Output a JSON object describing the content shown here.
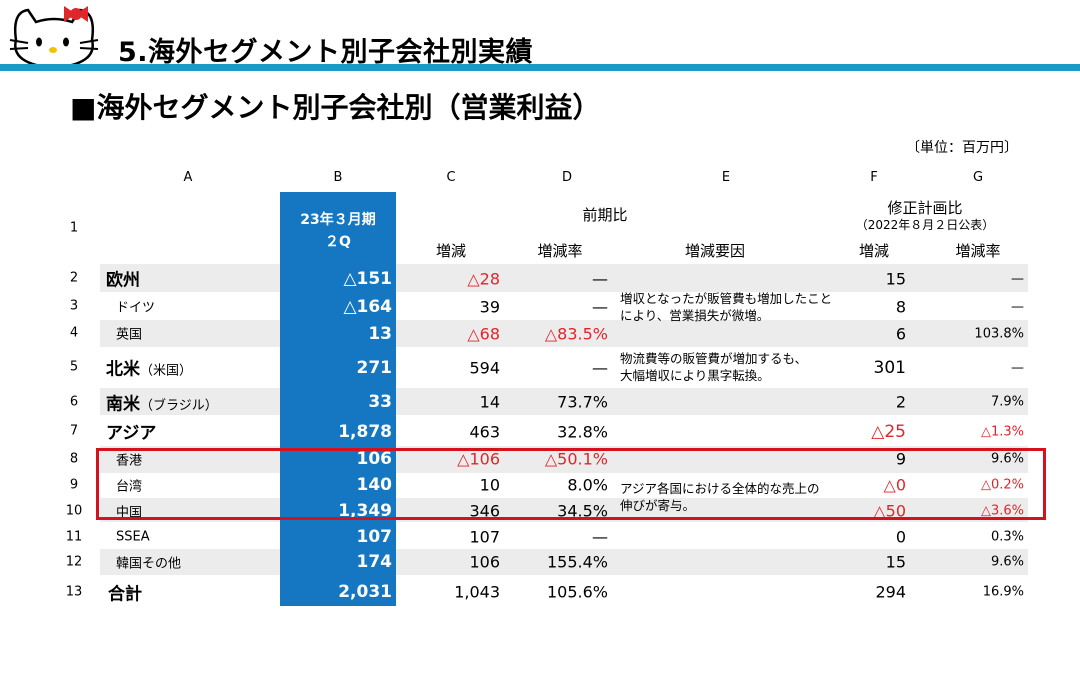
{
  "header": {
    "title": "5.海外セグメント別子会社別実績",
    "subtitle": "■海外セグメント別子会社別（営業利益）",
    "unit": "〔単位：百万円〕"
  },
  "columns": {
    "letters": [
      "A",
      "B",
      "C",
      "D",
      "E",
      "F",
      "G"
    ],
    "b_head_line1": "23年３月期",
    "b_head_line2": "２Q",
    "prev_group": "前期比",
    "plan_group": "修正計画比",
    "plan_sub": "（2022年８月２日公表）",
    "c_head": "増減",
    "d_head": "増減率",
    "e_head": "増減要因",
    "f_head": "増減",
    "g_head": "増減率"
  },
  "row_numbers": [
    "1",
    "2",
    "3",
    "4",
    "5",
    "6",
    "7",
    "8",
    "9",
    "10",
    "11",
    "12",
    "13"
  ],
  "rows": [
    {
      "label": "欧州",
      "sub": "",
      "b": "△151",
      "c": "△28",
      "d": "—",
      "f": "15",
      "g": "—"
    },
    {
      "label": "ドイツ",
      "sub": "",
      "b": "△164",
      "c": "39",
      "d": "—",
      "f": "8",
      "g": "—"
    },
    {
      "label": "英国",
      "sub": "",
      "b": "13",
      "c": "△68",
      "d": "△83.5%",
      "f": "6",
      "g": "103.8%"
    },
    {
      "label": "北米",
      "sub": "（米国）",
      "b": "271",
      "c": "594",
      "d": "—",
      "f": "301",
      "g": "—"
    },
    {
      "label": "南米",
      "sub": "（ブラジル）",
      "b": "33",
      "c": "14",
      "d": "73.7%",
      "f": "2",
      "g": "7.9%"
    },
    {
      "label": "アジア",
      "sub": "",
      "b": "1,878",
      "c": "463",
      "d": "32.8%",
      "f": "△25",
      "g": "△1.3%"
    },
    {
      "label": "香港",
      "sub": "",
      "b": "106",
      "c": "△106",
      "d": "△50.1%",
      "f": "9",
      "g": "9.6%"
    },
    {
      "label": "台湾",
      "sub": "",
      "b": "140",
      "c": "10",
      "d": "8.0%",
      "f": "△0",
      "g": "△0.2%"
    },
    {
      "label": "中国",
      "sub": "",
      "b": "1,349",
      "c": "346",
      "d": "34.5%",
      "f": "△50",
      "g": "△3.6%"
    },
    {
      "label": "SSEA",
      "sub": "",
      "b": "107",
      "c": "107",
      "d": "—",
      "f": "0",
      "g": "0.3%"
    },
    {
      "label": "韓国その他",
      "sub": "",
      "b": "174",
      "c": "106",
      "d": "155.4%",
      "f": "15",
      "g": "9.6%"
    },
    {
      "label": "合計",
      "sub": "",
      "b": "2,031",
      "c": "1,043",
      "d": "105.6%",
      "f": "294",
      "g": "16.9%"
    }
  ],
  "notes": {
    "europe": [
      "増収となったが販管費も増加したこと",
      "により、営業損失が微増。"
    ],
    "na": [
      "物流費等の販管費が増加するも、",
      "大幅増収により黒字転換。"
    ],
    "asia": [
      "アジア各国における全体的な売上の",
      "伸びが寄与。"
    ]
  },
  "colors": {
    "accent_bar": "#1a9bc6",
    "column_b": "#1577c2",
    "negative": "#e0262b",
    "highlight_box": "#d4121e"
  }
}
